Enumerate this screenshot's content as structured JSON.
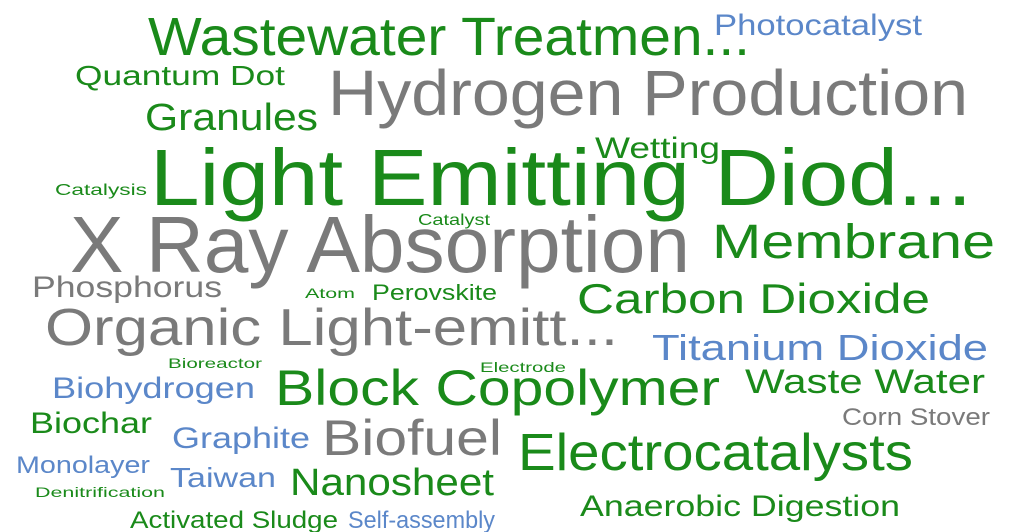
{
  "words": [
    {
      "text": "Wastewater Treatmen...",
      "color": "#1a8a1a"
    },
    {
      "text": "Photocatalyst",
      "color": "#5b87c9"
    },
    {
      "text": "Quantum Dot",
      "color": "#1a8a1a"
    },
    {
      "text": "Hydrogen Production",
      "color": "#7a7a7a"
    },
    {
      "text": "Granules",
      "color": "#1a8a1a"
    },
    {
      "text": "Wetting",
      "color": "#1a8a1a"
    },
    {
      "text": "Light Emitting Diod...",
      "color": "#1a8a1a"
    },
    {
      "text": "Catalysis",
      "color": "#1a8a1a"
    },
    {
      "text": "Catalyst",
      "color": "#1a8a1a"
    },
    {
      "text": "X Ray Absorption",
      "color": "#7a7a7a"
    },
    {
      "text": "Membrane",
      "color": "#1a8a1a"
    },
    {
      "text": "Phosphorus",
      "color": "#7a7a7a"
    },
    {
      "text": "Atom",
      "color": "#1a8a1a"
    },
    {
      "text": "Perovskite",
      "color": "#1a8a1a"
    },
    {
      "text": "Carbon Dioxide",
      "color": "#1a8a1a"
    },
    {
      "text": "Organic Light-emitt...",
      "color": "#7a7a7a"
    },
    {
      "text": "Titanium Dioxide",
      "color": "#5b87c9"
    },
    {
      "text": "Bioreactor",
      "color": "#1a8a1a"
    },
    {
      "text": "Electrode",
      "color": "#1a8a1a"
    },
    {
      "text": "Biohydrogen",
      "color": "#5b87c9"
    },
    {
      "text": "Block Copolymer",
      "color": "#1a8a1a"
    },
    {
      "text": "Waste Water",
      "color": "#1a8a1a"
    },
    {
      "text": "Corn Stover",
      "color": "#7a7a7a"
    },
    {
      "text": "Biochar",
      "color": "#1a8a1a"
    },
    {
      "text": "Graphite",
      "color": "#5b87c9"
    },
    {
      "text": "Biofuel",
      "color": "#7a7a7a"
    },
    {
      "text": "Electrocatalysts",
      "color": "#1a8a1a"
    },
    {
      "text": "Monolayer",
      "color": "#5b87c9"
    },
    {
      "text": "Taiwan",
      "color": "#5b87c9"
    },
    {
      "text": "Nanosheet",
      "color": "#1a8a1a"
    },
    {
      "text": "Denitrification",
      "color": "#1a8a1a"
    },
    {
      "text": "Anaerobic Digestion",
      "color": "#1a8a1a"
    },
    {
      "text": "Activated Sludge",
      "color": "#1a8a1a"
    },
    {
      "text": "Self-assembly",
      "color": "#5b87c9"
    }
  ]
}
